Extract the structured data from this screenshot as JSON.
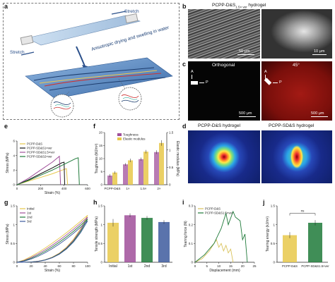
{
  "panels": {
    "a": {
      "letter": "a",
      "stretch_top": "Stretch",
      "stretch_bottom": "Stretch",
      "process": "Anisotropic drying and swelling in water"
    },
    "b": {
      "letter": "b",
      "title": "PCPP-D&S",
      "title_sub": "1.5× ver",
      "title_tail": " hydrogel",
      "scale1": "50 μm",
      "scale2": "10 μm"
    },
    "c": {
      "letter": "c",
      "left_title": "Orthogonal",
      "right_title": "45°",
      "A": "A",
      "P": "P",
      "scale1": "500 μm",
      "scale2": "500 μm"
    },
    "d": {
      "letter": "d",
      "left_title": "PCPP-D&S hydrogel",
      "right_title": "PCPP-SD&S hydrogel"
    },
    "e": {
      "letter": "e",
      "ylabel": "Stress (MPa)",
      "xlabel": "Strain (%)"
    },
    "f": {
      "letter": "f",
      "ylabel_left": "Toughness (MJ/m³)",
      "ylabel_right": "Elastic modulus (MPa)"
    },
    "g": {
      "letter": "g",
      "ylabel": "Stress (MPa)",
      "xlabel": "Strain (%)"
    },
    "h": {
      "letter": "h",
      "ylabel": "Tensile strength (MPa)"
    },
    "i": {
      "letter": "i",
      "ylabel": "Tearing force (N)",
      "xlabel": "Displacement (mm)"
    },
    "j": {
      "letter": "j",
      "ylabel": "Tearing energy (kJ/m²)",
      "ns": "ns"
    }
  },
  "colors": {
    "yellow": "#e7c84a",
    "purple": "#a04f9a",
    "green": "#1f7a3a",
    "blue": "#3d5a9e",
    "black": "#111111",
    "olive": "#d9c25a"
  },
  "chart_data": [
    {
      "panel": "e",
      "type": "line",
      "xlabel": "Strain (%)",
      "ylabel": "Stress (MPa)",
      "xlim": [
        0,
        600
      ],
      "ylim": [
        0,
        6
      ],
      "xticks": [
        0,
        200,
        400,
        600
      ],
      "yticks": [
        0,
        2,
        4,
        6
      ],
      "series": [
        {
          "name": "PCPP-D&S",
          "x": [
            0,
            100,
            200,
            300,
            400,
            420,
            430
          ],
          "y": [
            0,
            0.5,
            1.0,
            1.5,
            2.1,
            2.2,
            0
          ],
          "color": "#e7c84a"
        },
        {
          "name": "PCPP-SD&S1×ver",
          "x": [
            0,
            100,
            200,
            300,
            380,
            400,
            405
          ],
          "y": [
            0,
            0.7,
            1.5,
            2.3,
            3.0,
            3.1,
            0
          ],
          "color": "#111111"
        },
        {
          "name": "PCPP-SD&S1.5×ver",
          "x": [
            0,
            100,
            200,
            300,
            360,
            370
          ],
          "y": [
            0,
            0.9,
            2.0,
            3.1,
            3.9,
            0
          ],
          "color": "#a04f9a"
        },
        {
          "name": "PCPP-SD&S2×ver",
          "x": [
            0,
            100,
            200,
            300,
            400,
            500,
            520,
            530
          ],
          "y": [
            0,
            0.6,
            1.3,
            2.0,
            2.8,
            3.6,
            3.7,
            0
          ],
          "color": "#1f7a3a"
        }
      ]
    },
    {
      "panel": "f",
      "type": "bar",
      "categories": [
        "PCPP-D&S",
        "1×",
        "1.5×",
        "2×"
      ],
      "ylabel": "Toughness (MJ/m³)",
      "y2label": "Elastic modulus (MPa)",
      "ylim": [
        0,
        20
      ],
      "y2lim": [
        0,
        1.5
      ],
      "yticks": [
        0,
        5,
        10,
        15,
        20
      ],
      "y2ticks": [
        0.0,
        0.5,
        1.0,
        1.5
      ],
      "series": [
        {
          "name": "Toughness",
          "values": [
            3.5,
            7.8,
            9.8,
            12.5
          ],
          "errors": [
            0.6,
            0.5,
            0.6,
            0.7
          ],
          "color": "#a04f9a"
        },
        {
          "name": "Elastic modulus",
          "values": [
            0.35,
            0.7,
            0.95,
            1.2
          ],
          "errors": [
            0.04,
            0.05,
            0.05,
            0.08
          ],
          "color": "#e7c84a"
        }
      ]
    },
    {
      "panel": "g",
      "type": "line",
      "xlabel": "Strain (%)",
      "ylabel": "Stress (MPa)",
      "xlim": [
        0,
        100
      ],
      "ylim": [
        0,
        1.5
      ],
      "xticks": [
        0,
        20,
        40,
        60,
        80,
        100
      ],
      "yticks": [
        0.0,
        0.5,
        1.0,
        1.5
      ],
      "series": [
        {
          "name": "Initial",
          "color": "#e7c84a"
        },
        {
          "name": "1st",
          "color": "#a04f9a"
        },
        {
          "name": "2nd",
          "color": "#1f7a3a"
        },
        {
          "name": "3rd",
          "color": "#3d5a9e"
        }
      ]
    },
    {
      "panel": "h",
      "type": "bar",
      "categories": [
        "Initial",
        "1st",
        "2nd",
        "3rd"
      ],
      "ylabel": "Tensile strength (MPa)",
      "ylim": [
        0,
        1.5
      ],
      "yticks": [
        0.0,
        0.5,
        1.0,
        1.5
      ],
      "values": [
        1.05,
        1.25,
        1.18,
        1.07
      ],
      "errors": [
        0.1,
        0.05,
        0.05,
        0.05
      ],
      "colors": [
        "#e7c84a",
        "#a04f9a",
        "#1f7a3a",
        "#3d5a9e"
      ]
    },
    {
      "panel": "i",
      "type": "line",
      "xlabel": "Displacement (mm)",
      "ylabel": "Tearing force (N)",
      "xlim": [
        0,
        25
      ],
      "ylim": [
        0,
        0.3
      ],
      "xticks": [
        0,
        5,
        10,
        15,
        20,
        25
      ],
      "yticks": [
        0.0,
        0.1,
        0.2,
        0.3
      ],
      "series": [
        {
          "name": "PCPP-D&S",
          "color": "#d9c25a"
        },
        {
          "name": "PCPP-SD&S1.5×ver",
          "color": "#1f7a3a"
        }
      ]
    },
    {
      "panel": "j",
      "type": "bar",
      "categories": [
        "PCPP-D&S",
        "PCPP-SD&S1.5×ver"
      ],
      "ylabel": "Tearing energy (kJ/m²)",
      "ylim": [
        0,
        1.5
      ],
      "yticks": [
        0.0,
        0.5,
        1.0,
        1.5
      ],
      "values": [
        0.72,
        1.05
      ],
      "errors": [
        0.08,
        0.07
      ],
      "colors": [
        "#e7c84a",
        "#1f7a3a"
      ],
      "annotation": "ns"
    }
  ]
}
